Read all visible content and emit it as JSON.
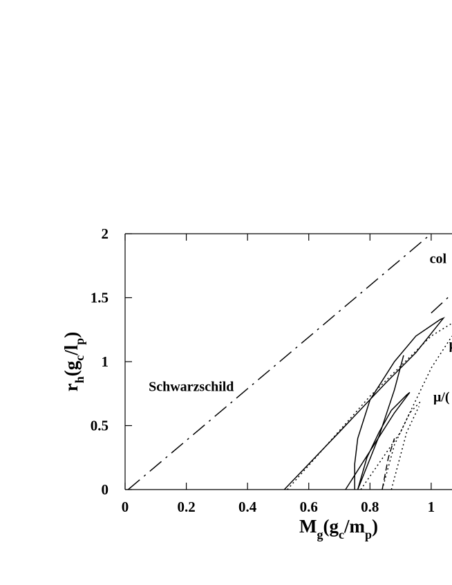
{
  "chart_data": {
    "type": "line",
    "xlabel": [
      "M",
      "g",
      "(g",
      "c",
      "/m",
      "p",
      ")"
    ],
    "ylabel": [
      "r",
      "h",
      "(g",
      "c",
      "/l",
      "p",
      ")"
    ],
    "xlim": [
      0,
      1.068
    ],
    "ylim": [
      0,
      2
    ],
    "xticks": [
      0,
      0.2,
      0.4,
      0.6,
      0.8,
      1
    ],
    "yticks": [
      0,
      0.5,
      1,
      1.5,
      2
    ],
    "annotations": [
      {
        "text": "Schwarzschild",
        "x": 0.077,
        "y": 0.77
      },
      {
        "text": "col",
        "x": 0.995,
        "y": 1.77
      },
      {
        "text": "μ",
        "x": 1.058,
        "y": 1.1
      },
      {
        "text": "μ/(",
        "x": 1.007,
        "y": 0.69
      }
    ],
    "series": [
      {
        "color": "#000000",
        "style": "dashdot",
        "x": [
          0.01,
          1.0
        ],
        "values": [
          0,
          2
        ]
      },
      {
        "color": "#000000",
        "style": "dashdot",
        "x": [
          1.0,
          1.068
        ],
        "values": [
          1.38,
          1.53
        ]
      },
      {
        "color": "#000000",
        "style": "solid",
        "x": [
          0.52,
          0.7,
          0.85,
          0.95,
          1.02,
          1.04,
          1.03,
          0.95,
          0.88,
          0.8,
          0.76,
          0.75,
          0.75
        ],
        "values": [
          0,
          0.45,
          0.83,
          1.07,
          1.28,
          1.34,
          1.33,
          1.2,
          1.0,
          0.7,
          0.4,
          0.2,
          0
        ]
      },
      {
        "color": "#000000",
        "style": "solid",
        "x": [
          0.72,
          0.8,
          0.88,
          0.93,
          0.92,
          0.87,
          0.83,
          0.79,
          0.76
        ],
        "values": [
          0,
          0.3,
          0.6,
          0.76,
          0.74,
          0.62,
          0.45,
          0.25,
          0
        ]
      },
      {
        "color": "#000000",
        "style": "solid",
        "x": [
          0.76,
          0.83,
          0.88,
          0.91
        ],
        "values": [
          0,
          0.42,
          0.78,
          1.05
        ]
      },
      {
        "color": "#000000",
        "style": "dotted",
        "x": [
          0.53,
          0.8,
          1.0,
          1.068
        ],
        "values": [
          0,
          0.73,
          1.2,
          1.3
        ]
      },
      {
        "color": "#000000",
        "style": "dotted",
        "x": [
          0.77,
          0.9,
          1.0,
          1.068
        ],
        "values": [
          0,
          0.45,
          0.95,
          1.2
        ]
      },
      {
        "color": "#000000",
        "style": "dotted",
        "x": [
          0.84,
          0.88,
          0.93,
          0.97
        ],
        "values": [
          0,
          0.35,
          0.6,
          0.7
        ]
      },
      {
        "color": "#000000",
        "style": "dotted",
        "x": [
          0.87,
          0.92,
          0.96
        ],
        "values": [
          0,
          0.45,
          0.65
        ]
      },
      {
        "color": "#000000",
        "style": "dashed",
        "x": [
          0.84,
          0.86,
          0.88
        ],
        "values": [
          0,
          0.25,
          0.4
        ]
      }
    ]
  }
}
